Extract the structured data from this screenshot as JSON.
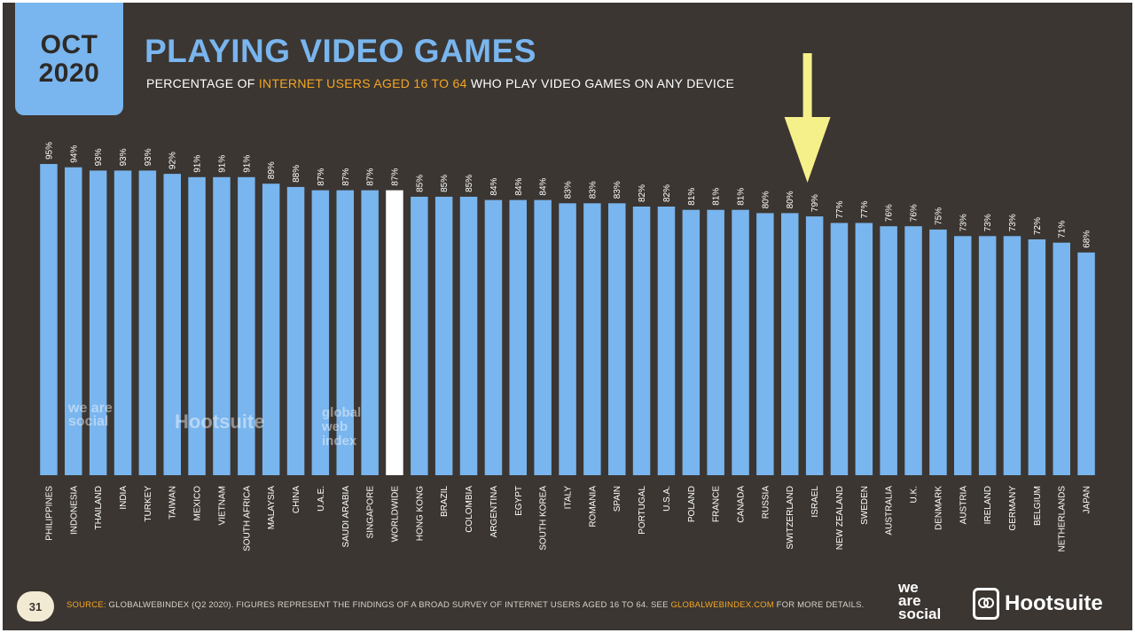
{
  "badge": {
    "month": "OCT",
    "year": "2020"
  },
  "title": "PLAYING VIDEO GAMES",
  "subtitle": {
    "pre": "PERCENTAGE OF ",
    "highlight": "INTERNET USERS AGED 16 TO 64",
    "post": " WHO PLAY VIDEO GAMES ON ANY DEVICE"
  },
  "chart_data": {
    "type": "bar",
    "categories": [
      "PHILIPPINES",
      "INDONESIA",
      "THAILAND",
      "INDIA",
      "TURKEY",
      "TAIWAN",
      "MEXICO",
      "VIETNAM",
      "SOUTH AFRICA",
      "MALAYSIA",
      "CHINA",
      "U.A.E.",
      "SAUDI ARABIA",
      "SINGAPORE",
      "WORLDWIDE",
      "HONG KONG",
      "BRAZIL",
      "COLOMBIA",
      "ARGENTINA",
      "EGYPT",
      "SOUTH KOREA",
      "ITALY",
      "ROMANIA",
      "SPAIN",
      "PORTUGAL",
      "U.S.A.",
      "POLAND",
      "FRANCE",
      "CANADA",
      "RUSSIA",
      "SWITZERLAND",
      "ISRAEL",
      "NEW ZEALAND",
      "SWEDEN",
      "AUSTRALIA",
      "U.K.",
      "DENMARK",
      "AUSTRIA",
      "IRELAND",
      "GERMANY",
      "BELGIUM",
      "NETHERLANDS",
      "JAPAN"
    ],
    "values": [
      95,
      94,
      93,
      93,
      93,
      92,
      91,
      91,
      91,
      89,
      88,
      87,
      87,
      87,
      87,
      85,
      85,
      85,
      84,
      84,
      84,
      83,
      83,
      83,
      82,
      82,
      81,
      81,
      81,
      80,
      80,
      79,
      77,
      77,
      76,
      76,
      75,
      73,
      73,
      73,
      72,
      71,
      68
    ],
    "value_labels": [
      "95%",
      "94%",
      "93%",
      "93%",
      "93%",
      "92%",
      "91%",
      "91%",
      "91%",
      "89%",
      "88%",
      "87%",
      "87%",
      "87%",
      "87%",
      "85%",
      "85%",
      "85%",
      "84%",
      "84%",
      "84%",
      "83%",
      "83%",
      "83%",
      "82%",
      "82%",
      "81%",
      "81%",
      "81%",
      "80%",
      "80%",
      "79%",
      "77%",
      "77%",
      "76%",
      "76%",
      "75%",
      "73%",
      "73%",
      "73%",
      "72%",
      "71%",
      "68%"
    ],
    "highlight_category": "WORLDWIDE",
    "annotated_category": "ISRAEL",
    "ylim": [
      0,
      100
    ],
    "colors": {
      "bar": "#79b5ee",
      "highlight": "#ffffff",
      "arrow": "#f5f08a",
      "label": "#ffffff"
    }
  },
  "watermark": {
    "weare": "we are social",
    "hootsuite": "Hootsuite",
    "gwi": "global web index"
  },
  "footer": {
    "page": "31",
    "source_label": "SOURCE:",
    "source_text": " GLOBALWEBINDEX (Q2 2020). FIGURES REPRESENT THE FINDINGS OF A BROAD SURVEY OF INTERNET USERS AGED 16 TO 64. SEE ",
    "source_link": "GLOBALWEBINDEX.COM",
    "source_tail": " FOR MORE DETAILS.",
    "logo_weare": [
      "we",
      "are",
      "social"
    ],
    "logo_hootsuite": "Hootsuite"
  }
}
